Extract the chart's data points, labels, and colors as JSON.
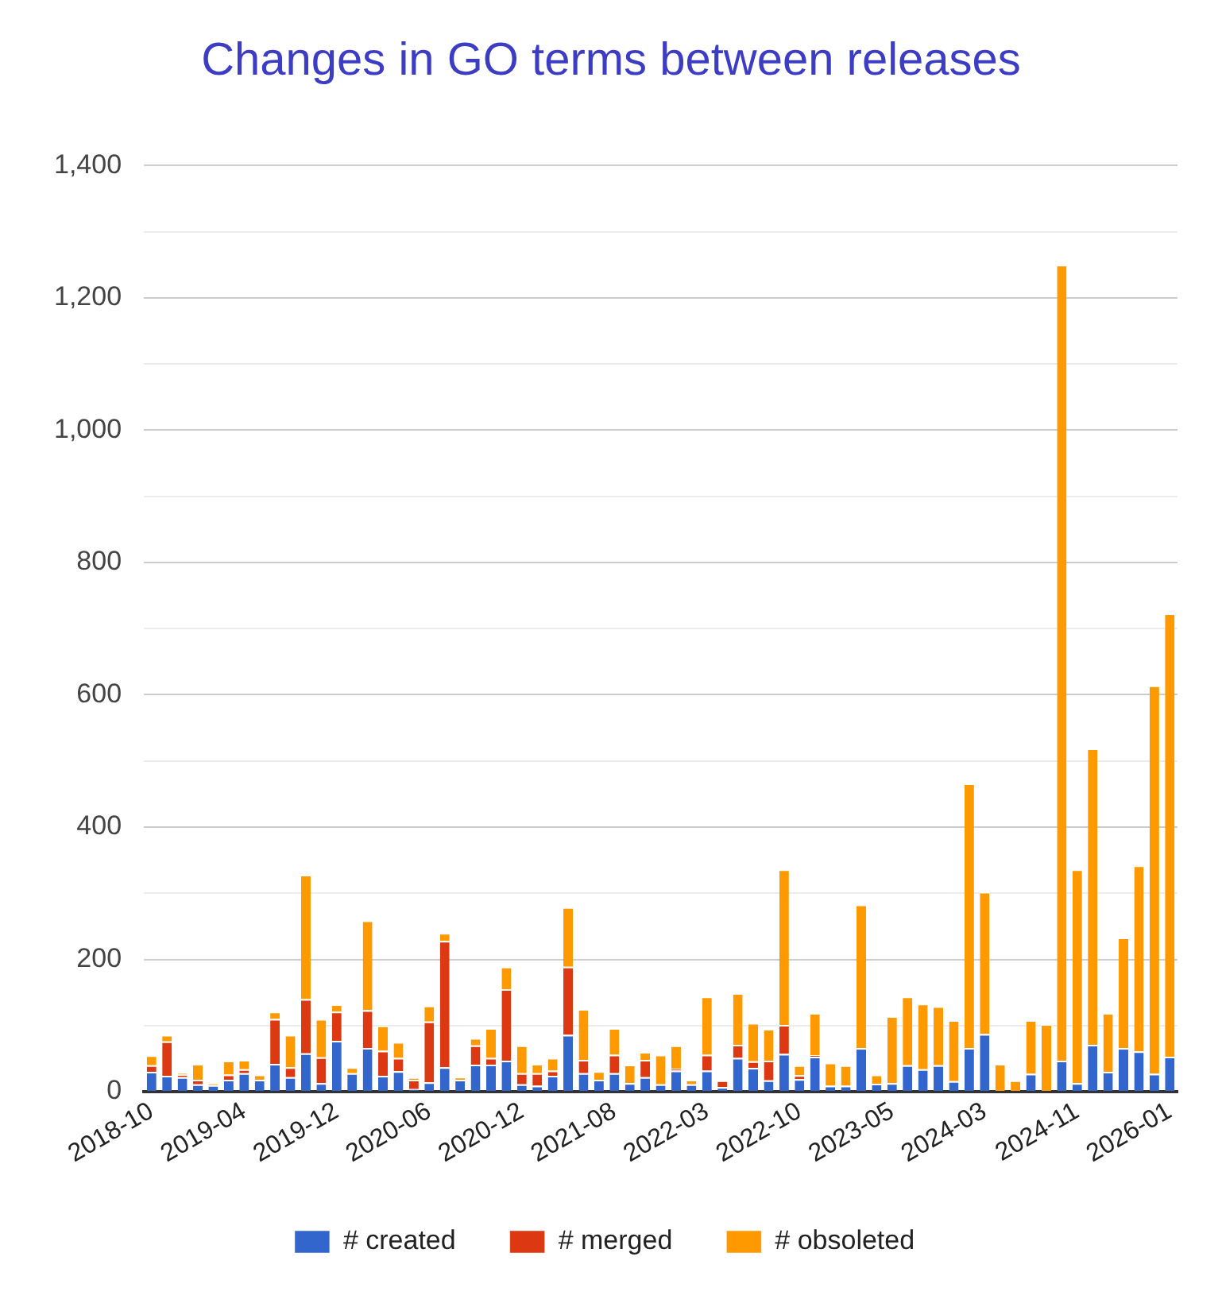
{
  "chart_data": {
    "type": "bar",
    "title": "Changes in GO terms between releases",
    "stacked": true,
    "grid": "y",
    "legend": "bottom",
    "categories": [
      "2018-10",
      null,
      null,
      null,
      null,
      null,
      "2019-04",
      null,
      null,
      null,
      null,
      null,
      "2019-12",
      null,
      null,
      null,
      null,
      null,
      "2020-06",
      null,
      null,
      null,
      null,
      null,
      "2020-12",
      null,
      null,
      null,
      null,
      null,
      "2021-08",
      null,
      null,
      null,
      null,
      null,
      "2022-03",
      null,
      null,
      null,
      null,
      null,
      "2022-10",
      null,
      null,
      null,
      null,
      null,
      "2023-05",
      null,
      null,
      null,
      null,
      null,
      "2024-03",
      null,
      null,
      null,
      null,
      null,
      "2024-11",
      null,
      null,
      null,
      null,
      null,
      "2026-01"
    ],
    "series": [
      {
        "name": "# created",
        "color": "#3366cc",
        "values": [
          30,
          24,
          22,
          11,
          10,
          18,
          28,
          18,
          42,
          22,
          58,
          13,
          77,
          28,
          66,
          24,
          31,
          4,
          14,
          37,
          18,
          41,
          41,
          47,
          11,
          9,
          24,
          86,
          28,
          18,
          28,
          13,
          22,
          11,
          32,
          11,
          32,
          7,
          51,
          36,
          17,
          57,
          19,
          53,
          9,
          9,
          66,
          12,
          13,
          40,
          34,
          40,
          16,
          66,
          87,
          null,
          null,
          27,
          null,
          47,
          13,
          71,
          30,
          66,
          61,
          27,
          53
        ]
      },
      {
        "name": "# merged",
        "color": "#dc3912",
        "values": [
          10,
          52,
          4,
          7,
          0,
          8,
          6,
          0,
          68,
          15,
          82,
          39,
          44,
          0,
          57,
          38,
          20,
          14,
          92,
          191,
          0,
          29,
          10,
          108,
          17,
          19,
          8,
          103,
          20,
          0,
          28,
          0,
          26,
          0,
          3,
          0,
          24,
          10,
          20,
          10,
          30,
          44,
          6,
          2,
          0,
          0,
          0,
          0,
          0,
          0,
          0,
          0,
          0,
          0,
          0,
          0,
          0,
          0,
          0,
          0,
          0,
          0,
          0,
          0,
          0,
          0,
          0
        ]
      },
      {
        "name": "# obsoleted",
        "color": "#ff9900",
        "values": [
          15,
          10,
          2,
          24,
          2,
          21,
          14,
          8,
          11,
          49,
          188,
          58,
          11,
          9,
          136,
          38,
          24,
          3,
          24,
          12,
          4,
          11,
          45,
          34,
          42,
          14,
          19,
          90,
          77,
          13,
          40,
          28,
          12,
          45,
          35,
          7,
          88,
          0,
          78,
          58,
          48,
          235,
          15,
          64,
          35,
          31,
          217,
          14,
          101,
          104,
          99,
          89,
          92,
          400,
          215,
          42,
          17,
          81,
          102,
          1203,
          323,
          448,
          89,
          167,
          281,
          587,
          670
        ]
      }
    ],
    "ylim": [
      0,
      1400
    ],
    "yticks": [
      0,
      {
        "value": 100,
        "label": null
      },
      200,
      {
        "value": 300,
        "label": null
      },
      400,
      {
        "value": 500,
        "label": null
      },
      600,
      {
        "value": 700,
        "label": null
      },
      800,
      {
        "value": 900,
        "label": null
      },
      {
        "value": 1000,
        "label": "1,000"
      },
      {
        "value": 1100,
        "label": null
      },
      {
        "value": 1200,
        "label": "1,200"
      },
      {
        "value": 1300,
        "label": null
      },
      {
        "value": 1400,
        "label": "1,400"
      }
    ]
  }
}
